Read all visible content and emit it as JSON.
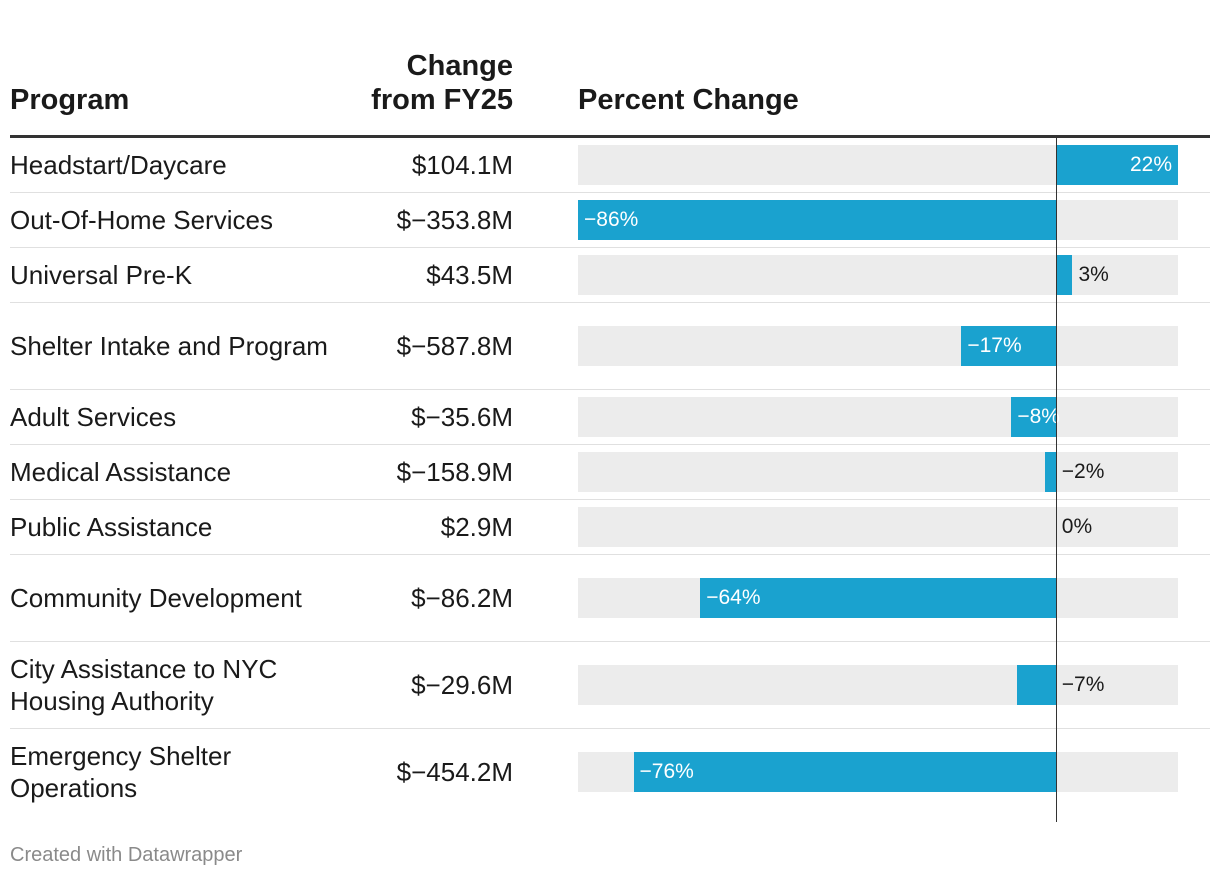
{
  "headers": {
    "program": "Program",
    "change_line1": "Change",
    "change_line2": "from FY25",
    "percent": "Percent Change"
  },
  "footer": "Created with Datawrapper",
  "colors": {
    "bar": "#1aa2cf",
    "bar_bg": "#ececec",
    "label_inside": "#ffffff",
    "label_outside": "#1a1a1a"
  },
  "chart_data": {
    "type": "bar",
    "title": "",
    "xlabel": "Percent Change",
    "ylabel": "Program",
    "xlim": [
      -86,
      22
    ],
    "categories": [
      "Headstart/Daycare",
      "Out-Of-Home Services",
      "Universal Pre-K",
      "Shelter Intake and Program",
      "Adult Services",
      "Medical Assistance",
      "Public Assistance",
      "Community Development",
      "City Assistance to NYC Housing Authority",
      "Emergency Shelter Operations"
    ],
    "values": [
      22,
      -86,
      3,
      -17,
      -8,
      -2,
      0,
      -64,
      -7,
      -76
    ],
    "rows": [
      {
        "program": "Headstart/Daycare",
        "change": "$104.1M",
        "pct": 22,
        "pct_label": "22%",
        "lines": 1
      },
      {
        "program": "Out-Of-Home Services",
        "change": "$−353.8M",
        "pct": -86,
        "pct_label": "−86%",
        "lines": 1
      },
      {
        "program": "Universal Pre-K",
        "change": "$43.5M",
        "pct": 3,
        "pct_label": "3%",
        "lines": 1
      },
      {
        "program": "Shelter Intake and Program",
        "change": "$−587.8M",
        "pct": -17,
        "pct_label": "−17%",
        "lines": 2
      },
      {
        "program": "Adult Services",
        "change": "$−35.6M",
        "pct": -8,
        "pct_label": "−8%",
        "lines": 1
      },
      {
        "program": "Medical Assistance",
        "change": "$−158.9M",
        "pct": -2,
        "pct_label": "−2%",
        "lines": 1
      },
      {
        "program": "Public Assistance",
        "change": "$2.9M",
        "pct": 0,
        "pct_label": "0%",
        "lines": 1
      },
      {
        "program": "Community Development",
        "change": "$−86.2M",
        "pct": -64,
        "pct_label": "−64%",
        "lines": 2
      },
      {
        "program": "City Assistance to NYC Housing Authority",
        "change": "$−29.6M",
        "pct": -7,
        "pct_label": "−7%",
        "lines": 2
      },
      {
        "program": "Emergency Shelter Operations",
        "change": "$−454.2M",
        "pct": -76,
        "pct_label": "−76%",
        "lines": 2
      }
    ]
  }
}
